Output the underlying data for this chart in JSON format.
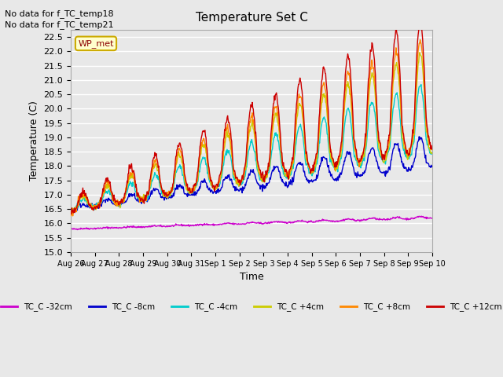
{
  "title": "Temperature Set C",
  "xlabel": "Time",
  "ylabel": "Temperature (C)",
  "ylim": [
    15.0,
    22.75
  ],
  "yticks": [
    15.0,
    15.5,
    16.0,
    16.5,
    17.0,
    17.5,
    18.0,
    18.5,
    19.0,
    19.5,
    20.0,
    20.5,
    21.0,
    21.5,
    22.0,
    22.5
  ],
  "text_no_data1": "No data for f_TC_temp18",
  "text_no_data2": "No data for f_TC_temp21",
  "wp_met_label": "WP_met",
  "legend_labels": [
    "TC_C -32cm",
    "TC_C -8cm",
    "TC_C -4cm",
    "TC_C +4cm",
    "TC_C +8cm",
    "TC_C +12cm"
  ],
  "line_colors": [
    "#cc00cc",
    "#0000cc",
    "#00cccc",
    "#cccc00",
    "#ff8800",
    "#cc0000"
  ],
  "background_color": "#e8e8e8",
  "plot_bg_color": "#e8e8e8",
  "grid_color": "#ffffff",
  "n_days": 15,
  "xtick_labels": [
    "Aug 26",
    "Aug 27",
    "Aug 28",
    "Aug 29",
    "Aug 30",
    "Aug 31",
    "Sep 1",
    "Sep 2",
    "Sep 3",
    "Sep 4",
    "Sep 5",
    "Sep 6",
    "Sep 7",
    "Sep 8",
    "Sep 9",
    "Sep 10"
  ]
}
